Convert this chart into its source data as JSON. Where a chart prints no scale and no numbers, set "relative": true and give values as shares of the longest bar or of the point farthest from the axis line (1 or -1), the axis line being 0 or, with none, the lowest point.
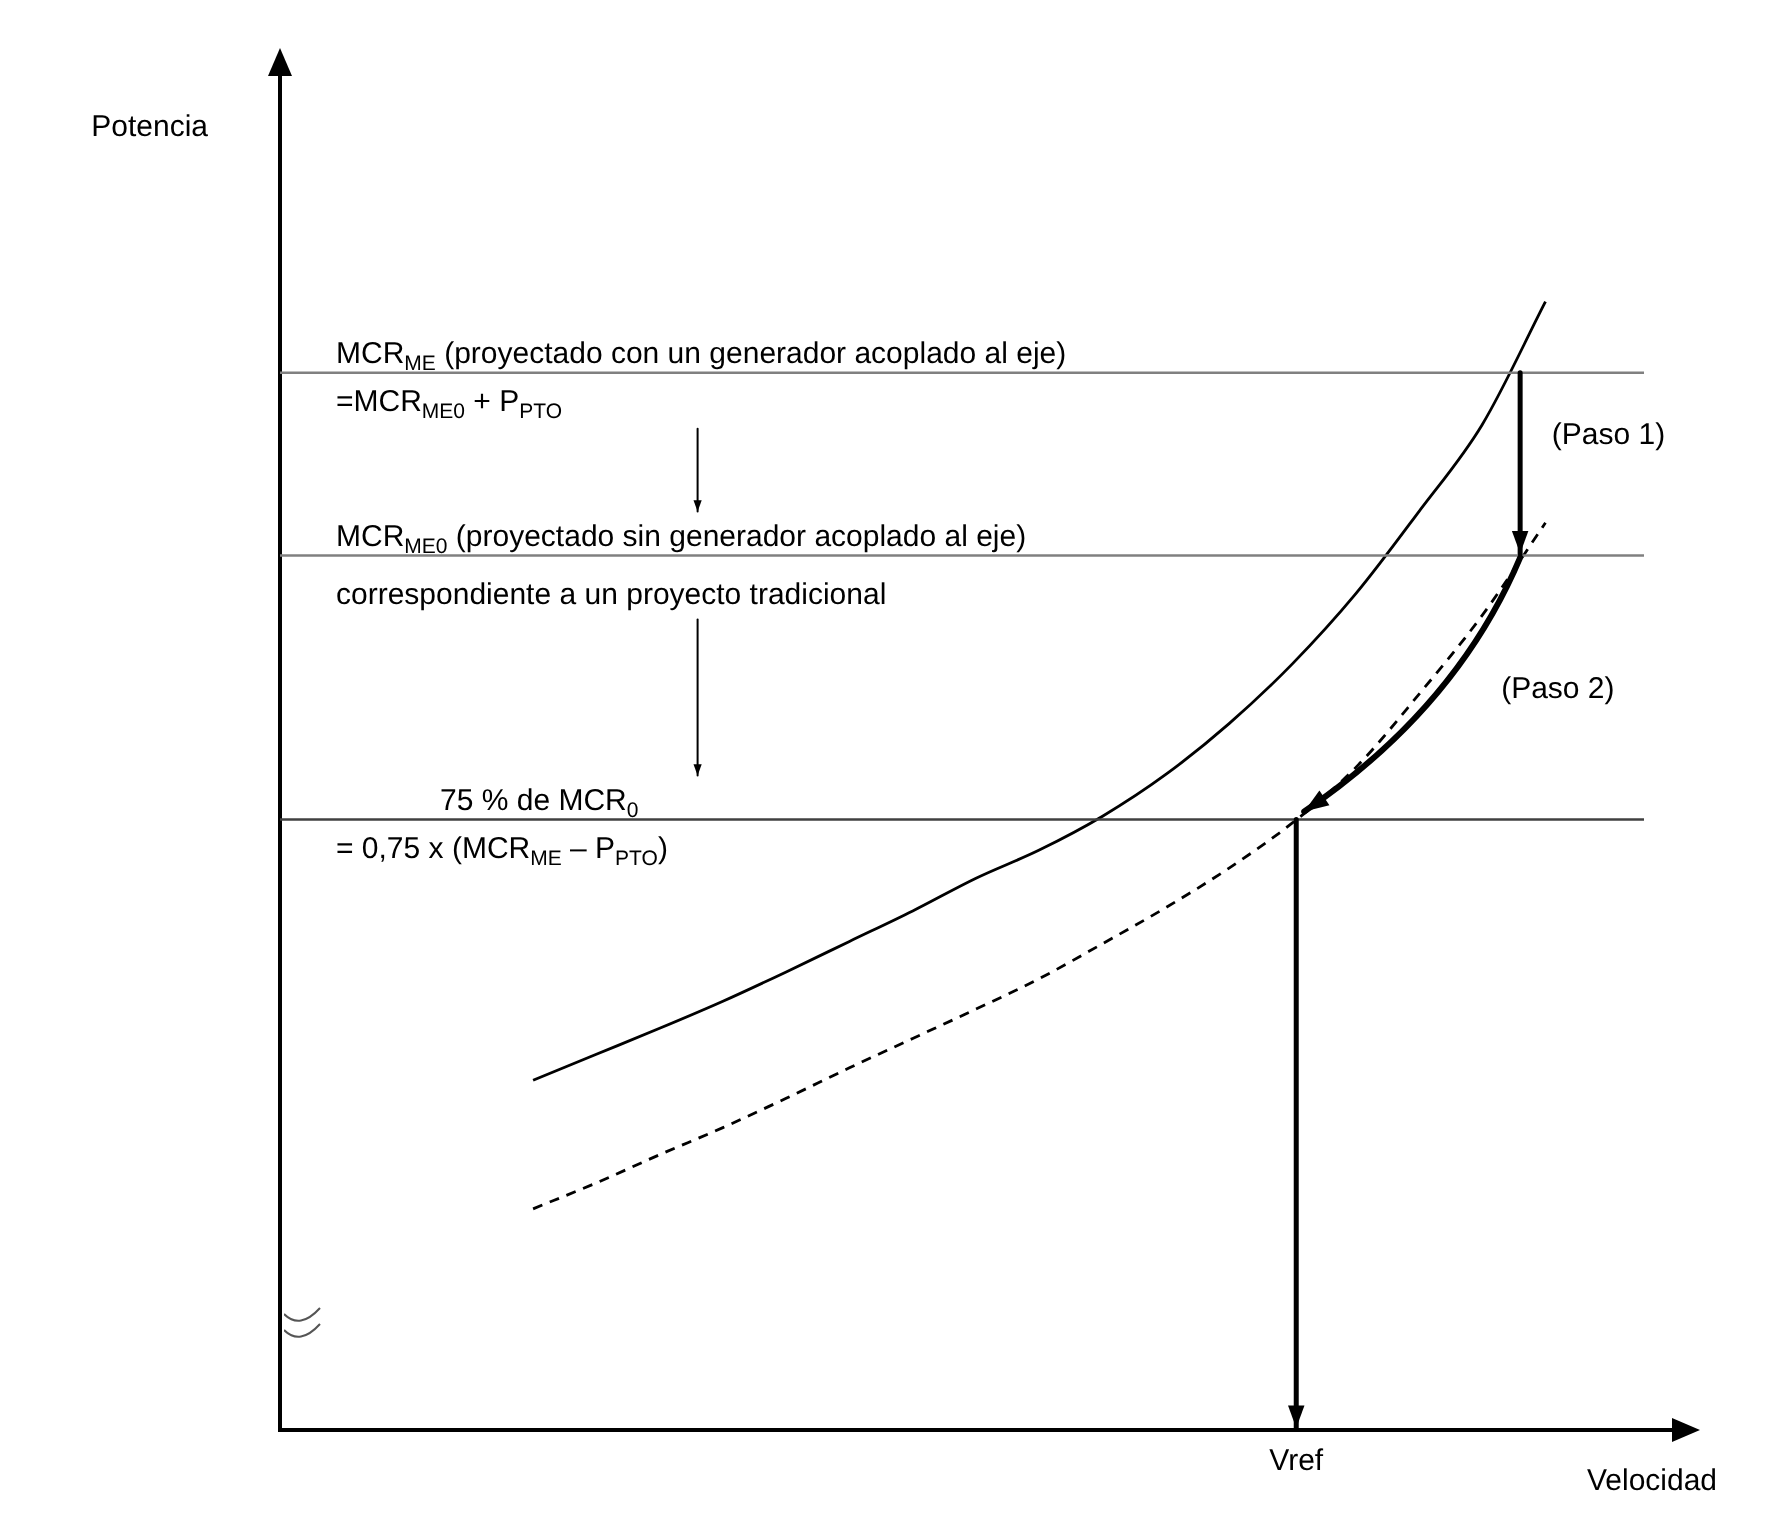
{
  "chart_data": {
    "type": "line",
    "relative": true,
    "xlabel": "Velocidad",
    "marker": "none",
    "tick_labels": false,
    "categories": [
      null,
      null,
      null,
      null,
      null,
      null,
      null,
      null,
      null,
      null,
      null,
      null,
      null,
      null,
      null,
      null,
      null,
      null,
      null,
      null,
      null,
      null,
      null
    ],
    "series": [
      {
        "color": "#000000",
        "line_style": "solid",
        "values": [
          null,
          null,
          null,
          null,
          0.31,
          0.333,
          0.356,
          0.38,
          0.406,
          0.433,
          0.46,
          0.489,
          0.514,
          0.544,
          0.581,
          0.626,
          0.679,
          0.741,
          0.814,
          0.891,
          1.0,
          null,
          null
        ]
      },
      {
        "color": "#000000",
        "line_style": "dashed",
        "values": [
          null,
          null,
          null,
          null,
          0.196,
          0.219,
          0.244,
          0.268,
          0.294,
          0.321,
          0.347,
          0.373,
          0.4,
          0.431,
          0.463,
          0.498,
          0.538,
          0.587,
          0.652,
          0.722,
          0.804,
          null,
          null
        ]
      }
    ],
    "ref_lines": [
      {
        "axis": "y",
        "value": 0.937,
        "label": "MCR$_{ME}$ (proyectado con un generador acoplado al eje)",
        "color": "#808080"
      },
      {
        "axis": "y",
        "value": 0.775,
        "label": "MCR$_{ME0}$ (proyectado sin generador acoplado al eje)",
        "color": "#808080"
      },
      {
        "axis": "y",
        "value": 0.541,
        "label": "75 % de MCR$_{0}$",
        "color": "#404040"
      }
    ],
    "annotations": [
      "=MCR$_{ME0}$ + P$_{PTO}$",
      "correspondiente a un proyecto tradicional",
      "= 0,75 x (MCR$_{ME}$ – P$_{PTO}$)",
      "(Paso 1)",
      "(Paso 2)",
      "Vref",
      "Potencia"
    ]
  }
}
